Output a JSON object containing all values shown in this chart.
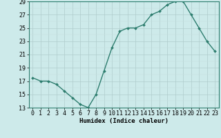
{
  "x": [
    0,
    1,
    2,
    3,
    4,
    5,
    6,
    7,
    8,
    9,
    10,
    11,
    12,
    13,
    14,
    15,
    16,
    17,
    18,
    19,
    20,
    21,
    22,
    23
  ],
  "y": [
    17.5,
    17.0,
    17.0,
    16.5,
    15.5,
    14.5,
    13.5,
    13.0,
    15.0,
    18.5,
    22.0,
    24.5,
    25.0,
    25.0,
    25.5,
    27.0,
    27.5,
    28.5,
    29.0,
    29.0,
    27.0,
    25.0,
    23.0,
    21.5
  ],
  "xlabel": "Humidex (Indice chaleur)",
  "ylim": [
    13,
    29
  ],
  "xlim_min": -0.5,
  "xlim_max": 23.5,
  "yticks": [
    13,
    15,
    17,
    19,
    21,
    23,
    25,
    27,
    29
  ],
  "xticks": [
    0,
    1,
    2,
    3,
    4,
    5,
    6,
    7,
    8,
    9,
    10,
    11,
    12,
    13,
    14,
    15,
    16,
    17,
    18,
    19,
    20,
    21,
    22,
    23
  ],
  "line_color": "#2d7d6e",
  "marker": "D",
  "marker_size": 2.0,
  "bg_color": "#cdeaea",
  "grid_major_color": "#b0cccc",
  "grid_minor_color": "#c8e0e0",
  "xlabel_fontsize": 6.5,
  "tick_fontsize": 6,
  "line_width": 1.0,
  "spine_color": "#2d7d6e"
}
